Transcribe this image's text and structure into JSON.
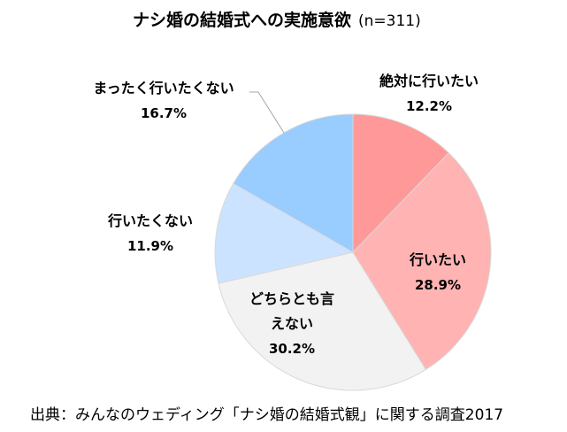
{
  "chart_data": {
    "type": "pie",
    "title": "ナシ婚の結婚式への実施意欲",
    "subtitle": "(n=311)",
    "start": "top",
    "direction": "clockwise",
    "slices": [
      {
        "label": "絶対に行いたい",
        "value": 12.2,
        "value_label": "12.2%",
        "color": "#FF9999"
      },
      {
        "label": "行いたい",
        "value": 28.9,
        "value_label": "28.9%",
        "color": "#FFB3B3"
      },
      {
        "label": "どちらとも言えない",
        "value": 30.2,
        "value_label": "30.2%",
        "color": "#F2F2F2"
      },
      {
        "label": "行いたくない",
        "value": 11.9,
        "value_label": "11.9%",
        "color": "#CCE3FF"
      },
      {
        "label": "まったく行いたくない",
        "value": 16.7,
        "value_label": "16.7%",
        "color": "#99CCFF"
      }
    ]
  },
  "source": "出典：みんなのウェディング「ナシ婚の結婚式観」に関する調査2017"
}
